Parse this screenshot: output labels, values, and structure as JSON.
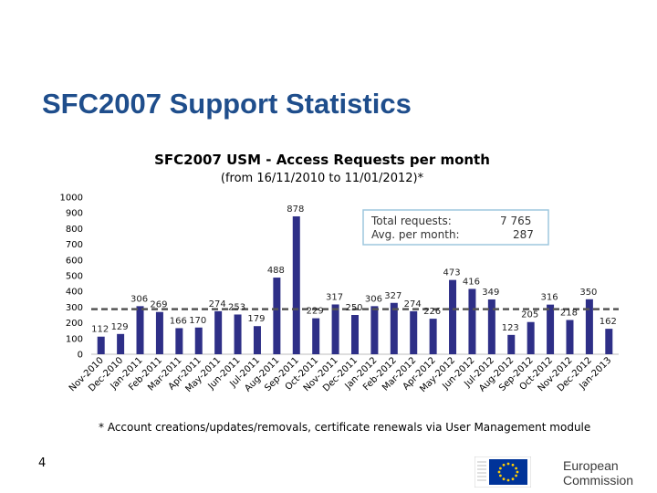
{
  "slide": {
    "title": "SFC2007 Support Statistics",
    "footnote": "* Account creations/updates/removals, certificate renewals via User Management module",
    "page_number": "4",
    "logo": {
      "line1": "European",
      "line2": "Commission"
    }
  },
  "colors": {
    "title": "#1f4e8c",
    "bar": "#2e2f87",
    "average_line": "#555555",
    "stats_box": "#9ec7de"
  },
  "chart_data": {
    "type": "bar",
    "title": "SFC2007 USM - Access Requests per month",
    "subtitle": "(from 16/11/2010 to 11/01/2012)*",
    "xlabel": "",
    "ylabel": "",
    "ylim": [
      0,
      1000
    ],
    "yticks": [
      0,
      100,
      200,
      300,
      400,
      500,
      600,
      700,
      800,
      900,
      1000
    ],
    "grid": false,
    "categories": [
      "Nov-2010",
      "Dec-2010",
      "Jan-2011",
      "Feb-2011",
      "Mar-2011",
      "Apr-2011",
      "May-2011",
      "Jun-2011",
      "Jul-2011",
      "Aug-2011",
      "Sep-2011",
      "Oct-2011",
      "Nov-2011",
      "Dec-2011",
      "Jan-2012",
      "Feb-2012",
      "Mar-2012",
      "Apr-2012",
      "May-2012",
      "Jun-2012",
      "Jul-2012",
      "Aug-2012",
      "Sep-2012",
      "Oct-2012",
      "Nov-2012",
      "Dec-2012",
      "Jan-2013"
    ],
    "values": [
      112,
      129,
      306,
      269,
      166,
      170,
      274,
      253,
      179,
      488,
      878,
      229,
      317,
      250,
      306,
      327,
      274,
      226,
      473,
      416,
      349,
      123,
      205,
      316,
      218,
      350,
      162
    ],
    "average": 287,
    "stats": {
      "total_label": "Total requests:",
      "total_value": "7 765",
      "avg_label": "Avg. per month:",
      "avg_value": "287"
    }
  }
}
